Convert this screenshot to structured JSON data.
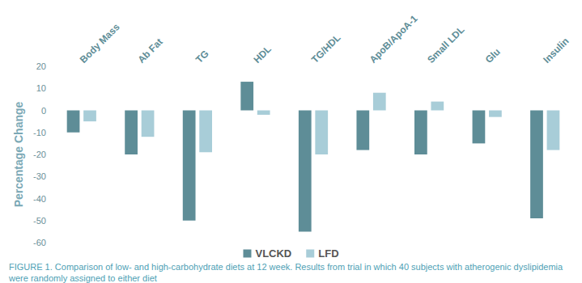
{
  "chart_data": {
    "type": "bar",
    "title": "FIGURE 1. Comparison of low- and high-carbohydrate diets at 12 week. Results from trial in which 40 subjects with atherogenic dyslipidemia were randomly assigned to either diet",
    "ylabel": "Percentage Change",
    "categories": [
      "Body Mass",
      "Ab Fat",
      "TG",
      "HDL",
      "TG/HDL",
      "ApoB/ApoA-1",
      "Small LDL",
      "Glu",
      "Insulin"
    ],
    "series": [
      {
        "name": "VLCKD",
        "color": "#5e8d97",
        "values": [
          -10,
          -20,
          -50,
          13,
          -55,
          -18,
          -20,
          -15,
          -49
        ]
      },
      {
        "name": "LFD",
        "color": "#a8cdd8",
        "values": [
          -5,
          -12,
          -19,
          -2,
          -20,
          8,
          4,
          -3,
          -18
        ]
      }
    ],
    "ylim": [
      -60,
      20
    ],
    "yticks": [
      -60,
      -50,
      -40,
      -30,
      -20,
      -10,
      0,
      10,
      20
    ],
    "grid": false,
    "legend": "bottom"
  }
}
